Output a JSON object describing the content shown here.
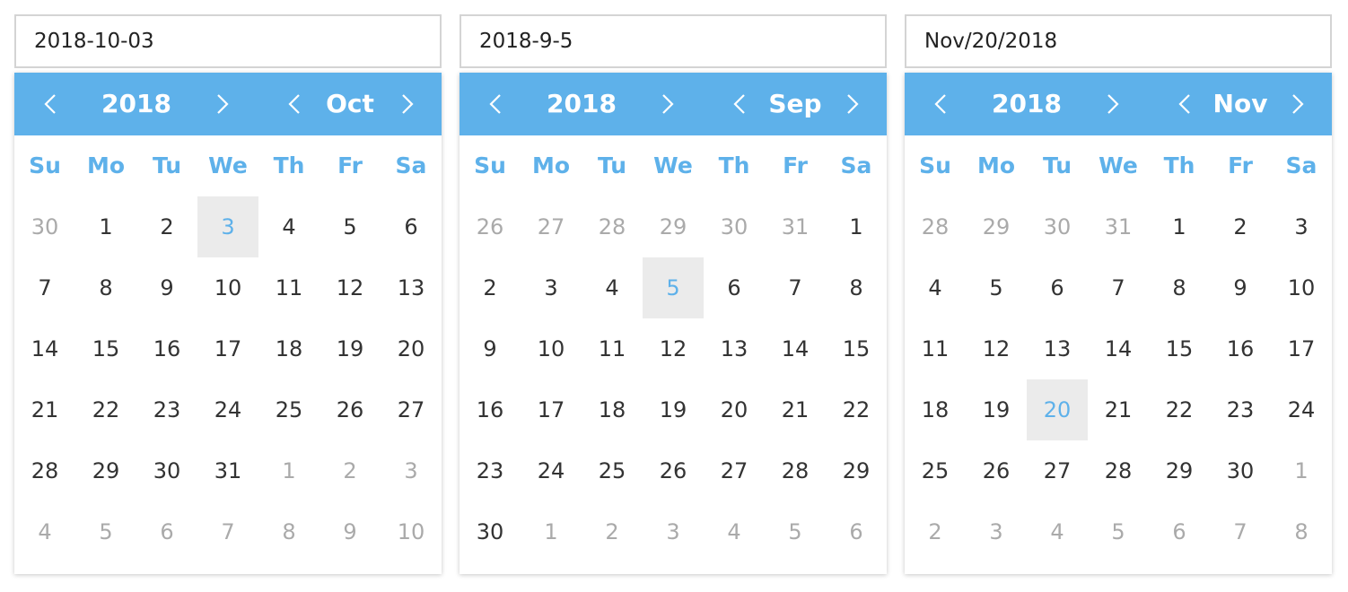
{
  "colors": {
    "accent": "#5eb1ea",
    "selected_bg": "#ebebeb",
    "muted_text": "#aaaaaa",
    "text": "#333333"
  },
  "icons": {
    "prev": "chevron-left-icon",
    "next": "chevron-right-icon"
  },
  "pickers": [
    {
      "input_value": "2018-10-03",
      "year": "2018",
      "month": "Oct",
      "weekdays": [
        "Su",
        "Mo",
        "Tu",
        "We",
        "Th",
        "Fr",
        "Sa"
      ],
      "days": [
        {
          "d": "30",
          "other": true
        },
        {
          "d": "1"
        },
        {
          "d": "2"
        },
        {
          "d": "3",
          "selected": true
        },
        {
          "d": "4"
        },
        {
          "d": "5"
        },
        {
          "d": "6"
        },
        {
          "d": "7"
        },
        {
          "d": "8"
        },
        {
          "d": "9"
        },
        {
          "d": "10"
        },
        {
          "d": "11"
        },
        {
          "d": "12"
        },
        {
          "d": "13"
        },
        {
          "d": "14"
        },
        {
          "d": "15"
        },
        {
          "d": "16"
        },
        {
          "d": "17"
        },
        {
          "d": "18"
        },
        {
          "d": "19"
        },
        {
          "d": "20"
        },
        {
          "d": "21"
        },
        {
          "d": "22"
        },
        {
          "d": "23"
        },
        {
          "d": "24"
        },
        {
          "d": "25"
        },
        {
          "d": "26"
        },
        {
          "d": "27"
        },
        {
          "d": "28"
        },
        {
          "d": "29"
        },
        {
          "d": "30"
        },
        {
          "d": "31"
        },
        {
          "d": "1",
          "other": true
        },
        {
          "d": "2",
          "other": true
        },
        {
          "d": "3",
          "other": true
        },
        {
          "d": "4",
          "other": true
        },
        {
          "d": "5",
          "other": true
        },
        {
          "d": "6",
          "other": true
        },
        {
          "d": "7",
          "other": true
        },
        {
          "d": "8",
          "other": true
        },
        {
          "d": "9",
          "other": true
        },
        {
          "d": "10",
          "other": true
        }
      ]
    },
    {
      "input_value": "2018-9-5",
      "year": "2018",
      "month": "Sep",
      "weekdays": [
        "Su",
        "Mo",
        "Tu",
        "We",
        "Th",
        "Fr",
        "Sa"
      ],
      "days": [
        {
          "d": "26",
          "other": true
        },
        {
          "d": "27",
          "other": true
        },
        {
          "d": "28",
          "other": true
        },
        {
          "d": "29",
          "other": true
        },
        {
          "d": "30",
          "other": true
        },
        {
          "d": "31",
          "other": true
        },
        {
          "d": "1"
        },
        {
          "d": "2"
        },
        {
          "d": "3"
        },
        {
          "d": "4"
        },
        {
          "d": "5",
          "selected": true
        },
        {
          "d": "6"
        },
        {
          "d": "7"
        },
        {
          "d": "8"
        },
        {
          "d": "9"
        },
        {
          "d": "10"
        },
        {
          "d": "11"
        },
        {
          "d": "12"
        },
        {
          "d": "13"
        },
        {
          "d": "14"
        },
        {
          "d": "15"
        },
        {
          "d": "16"
        },
        {
          "d": "17"
        },
        {
          "d": "18"
        },
        {
          "d": "19"
        },
        {
          "d": "20"
        },
        {
          "d": "21"
        },
        {
          "d": "22"
        },
        {
          "d": "23"
        },
        {
          "d": "24"
        },
        {
          "d": "25"
        },
        {
          "d": "26"
        },
        {
          "d": "27"
        },
        {
          "d": "28"
        },
        {
          "d": "29"
        },
        {
          "d": "30"
        },
        {
          "d": "1",
          "other": true
        },
        {
          "d": "2",
          "other": true
        },
        {
          "d": "3",
          "other": true
        },
        {
          "d": "4",
          "other": true
        },
        {
          "d": "5",
          "other": true
        },
        {
          "d": "6",
          "other": true
        }
      ]
    },
    {
      "input_value": "Nov/20/2018",
      "year": "2018",
      "month": "Nov",
      "weekdays": [
        "Su",
        "Mo",
        "Tu",
        "We",
        "Th",
        "Fr",
        "Sa"
      ],
      "days": [
        {
          "d": "28",
          "other": true
        },
        {
          "d": "29",
          "other": true
        },
        {
          "d": "30",
          "other": true
        },
        {
          "d": "31",
          "other": true
        },
        {
          "d": "1"
        },
        {
          "d": "2"
        },
        {
          "d": "3"
        },
        {
          "d": "4"
        },
        {
          "d": "5"
        },
        {
          "d": "6"
        },
        {
          "d": "7"
        },
        {
          "d": "8"
        },
        {
          "d": "9"
        },
        {
          "d": "10"
        },
        {
          "d": "11"
        },
        {
          "d": "12"
        },
        {
          "d": "13"
        },
        {
          "d": "14"
        },
        {
          "d": "15"
        },
        {
          "d": "16"
        },
        {
          "d": "17"
        },
        {
          "d": "18"
        },
        {
          "d": "19"
        },
        {
          "d": "20",
          "selected": true
        },
        {
          "d": "21"
        },
        {
          "d": "22"
        },
        {
          "d": "23"
        },
        {
          "d": "24"
        },
        {
          "d": "25"
        },
        {
          "d": "26"
        },
        {
          "d": "27"
        },
        {
          "d": "28"
        },
        {
          "d": "29"
        },
        {
          "d": "30"
        },
        {
          "d": "1",
          "other": true
        },
        {
          "d": "2",
          "other": true
        },
        {
          "d": "3",
          "other": true
        },
        {
          "d": "4",
          "other": true
        },
        {
          "d": "5",
          "other": true
        },
        {
          "d": "6",
          "other": true
        },
        {
          "d": "7",
          "other": true
        },
        {
          "d": "8",
          "other": true
        }
      ]
    }
  ]
}
